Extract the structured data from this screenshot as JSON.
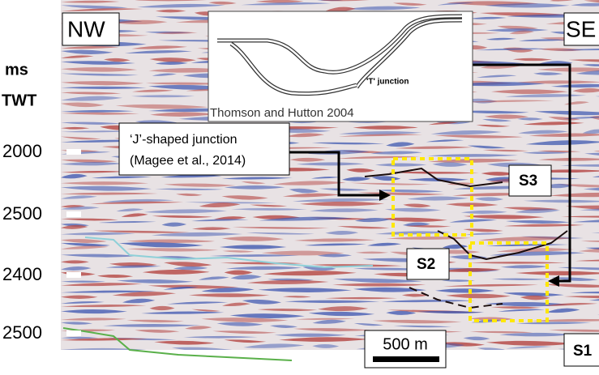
{
  "labels": {
    "nw": "NW",
    "se": "SE",
    "ms": "ms",
    "twt": "TWT",
    "depths": [
      "2000",
      "2500",
      "2400",
      "2500"
    ],
    "callout": [
      "‘J’-shaped junction",
      "(Magee et al., 2014)"
    ],
    "inset_junction": "'T'  junction",
    "inset_source": "Thomson and Hutton 2004",
    "s1": "S1",
    "s2": "S2",
    "s3": "S3",
    "scale": "500 m"
  }
}
